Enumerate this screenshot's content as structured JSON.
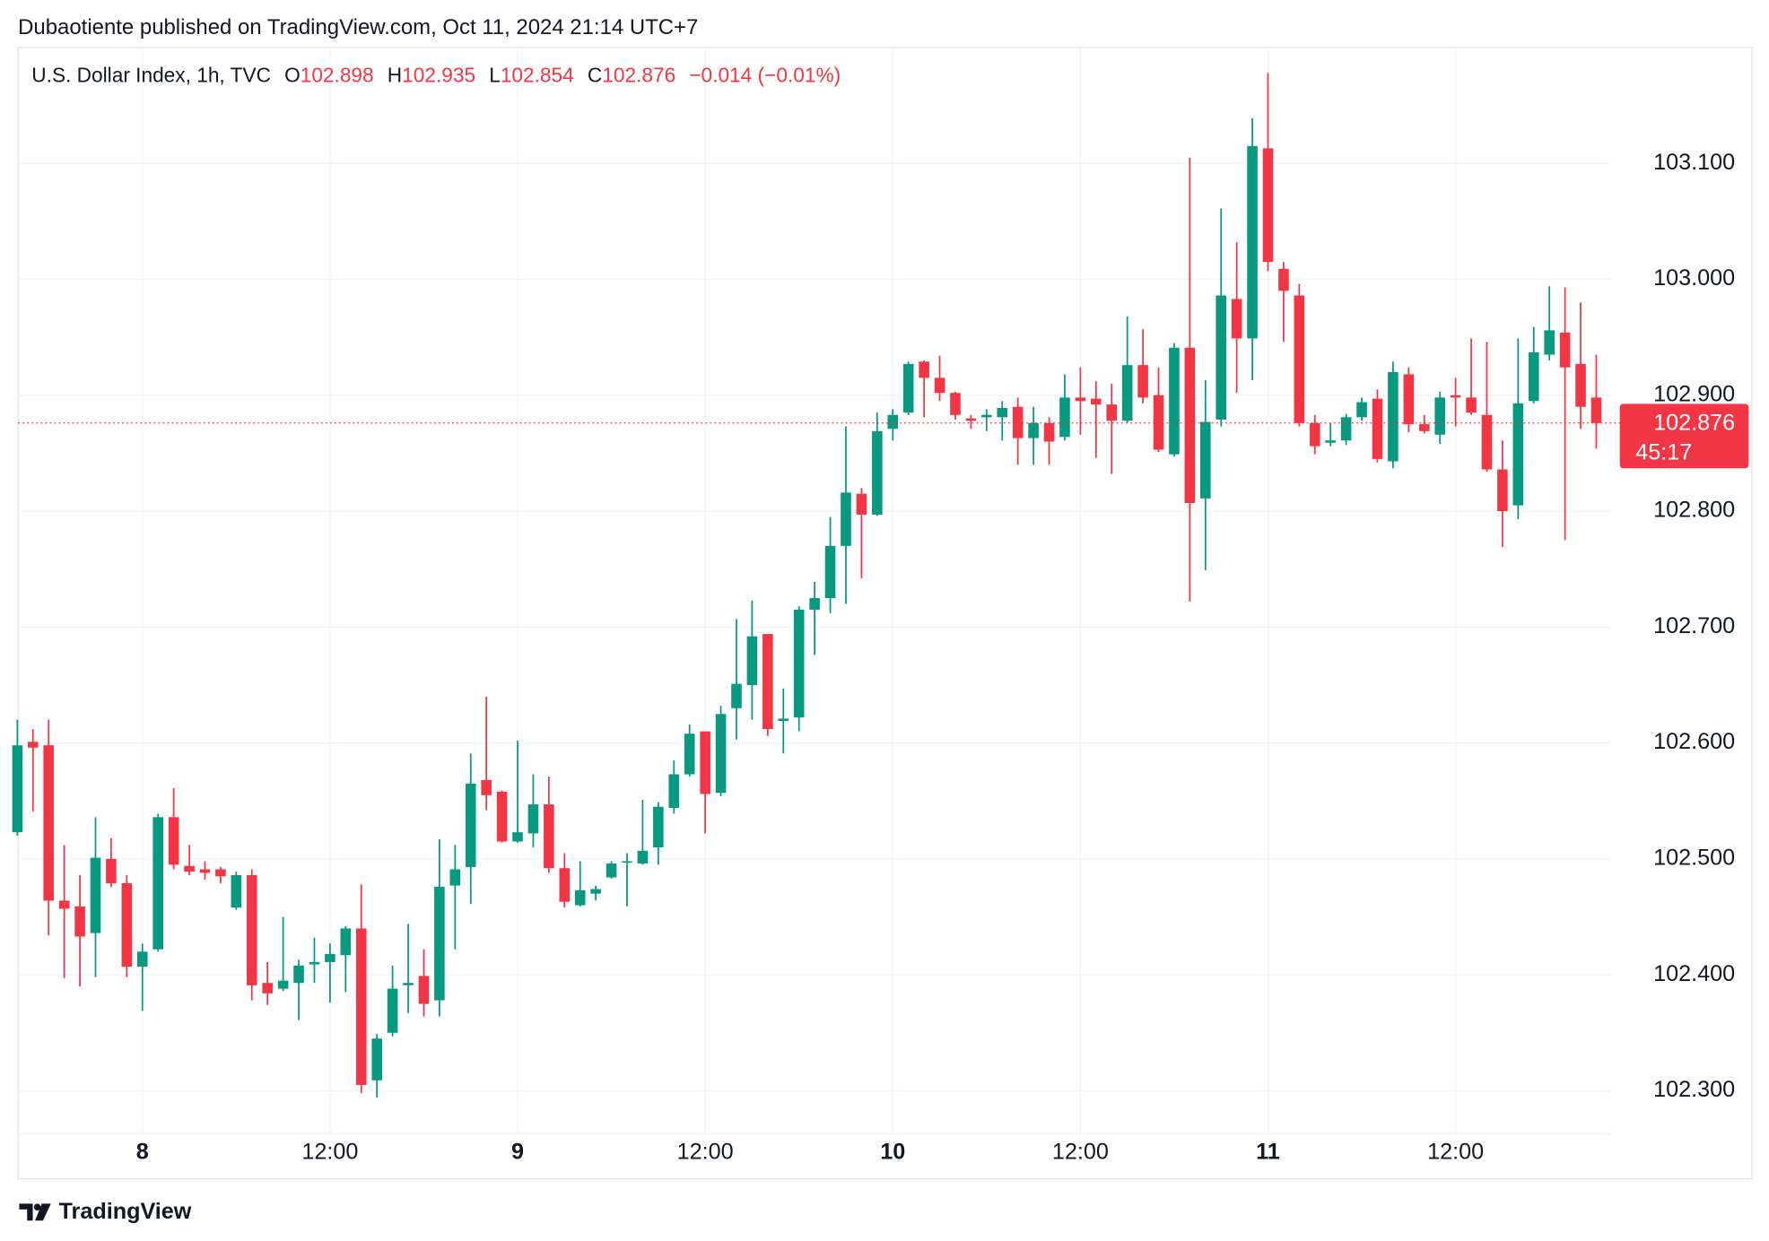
{
  "header": {
    "text": "Dubaotiente published on TradingView.com, Oct 11, 2024 21:14 UTC+7"
  },
  "footer": {
    "logo": "TradingView"
  },
  "chart_data": {
    "type": "candlestick",
    "title": "U.S. Dollar Index, 1h, TVC",
    "ohlc_legend": [
      {
        "label": "O",
        "value": "102.898"
      },
      {
        "label": "H",
        "value": "102.935"
      },
      {
        "label": "L",
        "value": "102.854"
      },
      {
        "label": "C",
        "value": "102.876"
      }
    ],
    "change": "−0.014 (−0.01%)",
    "categories": [
      null,
      null,
      null,
      null,
      null,
      null,
      null,
      null,
      "8",
      null,
      null,
      null,
      null,
      null,
      null,
      null,
      null,
      null,
      null,
      null,
      "12:00",
      null,
      null,
      null,
      null,
      null,
      null,
      null,
      null,
      null,
      null,
      null,
      "9",
      null,
      null,
      null,
      null,
      null,
      null,
      null,
      null,
      null,
      null,
      null,
      "12:00",
      null,
      null,
      null,
      null,
      null,
      null,
      null,
      null,
      null,
      null,
      null,
      "10",
      null,
      null,
      null,
      null,
      null,
      null,
      null,
      null,
      null,
      null,
      null,
      "12:00",
      null,
      null,
      null,
      null,
      null,
      null,
      null,
      null,
      null,
      null,
      null,
      "11",
      null,
      null,
      null,
      null,
      null,
      null,
      null,
      null,
      null,
      null,
      null,
      "12:00",
      null,
      null,
      null,
      null,
      null,
      null,
      null,
      null,
      null
    ],
    "open": [
      102.523,
      102.601,
      102.598,
      102.464,
      102.459,
      102.436,
      102.5,
      102.479,
      102.407,
      102.422,
      102.536,
      102.494,
      102.491,
      102.491,
      102.458,
      102.486,
      102.393,
      102.388,
      102.393,
      102.409,
      102.411,
      102.417,
      102.44,
      102.309,
      102.35,
      102.391,
      102.399,
      102.378,
      102.477,
      102.493,
      102.568,
      102.558,
      102.515,
      102.522,
      102.547,
      102.492,
      102.46,
      102.47,
      102.484,
      102.497,
      102.496,
      102.51,
      102.544,
      102.573,
      102.61,
      102.557,
      102.63,
      102.65,
      102.694,
      102.619,
      102.622,
      102.715,
      102.725,
      102.77,
      102.815,
      102.797,
      102.871,
      102.885,
      102.929,
      102.915,
      102.902,
      102.88,
      102.881,
      102.881,
      102.89,
      102.863,
      102.876,
      102.864,
      102.898,
      102.897,
      102.892,
      102.878,
      102.926,
      102.9,
      102.849,
      102.941,
      102.811,
      102.879,
      102.983,
      102.949,
      103.113,
      103.009,
      102.986,
      102.876,
      102.859,
      102.861,
      102.881,
      102.897,
      102.843,
      102.918,
      102.875,
      102.866,
      102.9,
      102.898,
      102.883,
      102.836,
      102.805,
      102.895,
      102.935,
      102.954,
      102.927,
      102.898
    ],
    "high": [
      102.62,
      102.612,
      102.62,
      102.512,
      102.486,
      102.536,
      102.518,
      102.486,
      102.427,
      102.539,
      102.561,
      102.512,
      102.498,
      102.493,
      102.489,
      102.491,
      102.411,
      102.45,
      102.413,
      102.432,
      102.427,
      102.442,
      102.478,
      102.349,
      102.408,
      102.444,
      102.422,
      102.517,
      102.512,
      102.591,
      102.64,
      102.559,
      102.602,
      102.573,
      102.571,
      102.505,
      102.498,
      102.477,
      102.498,
      102.505,
      102.551,
      102.549,
      102.585,
      102.616,
      102.61,
      102.632,
      102.707,
      102.723,
      102.694,
      102.647,
      102.718,
      102.739,
      102.795,
      102.873,
      102.82,
      102.885,
      102.888,
      102.929,
      102.93,
      102.934,
      102.903,
      102.883,
      102.888,
      102.895,
      102.898,
      102.89,
      102.881,
      102.918,
      102.924,
      102.912,
      102.91,
      102.968,
      102.957,
      102.924,
      102.945,
      103.105,
      102.913,
      103.061,
      103.032,
      103.139,
      103.178,
      103.015,
      102.996,
      102.883,
      102.876,
      102.884,
      102.898,
      102.905,
      102.929,
      102.924,
      102.883,
      102.903,
      102.915,
      102.949,
      102.946,
      102.861,
      102.949,
      102.959,
      102.994,
      102.993,
      102.98,
      102.935
    ],
    "low": [
      102.52,
      102.541,
      102.434,
      102.397,
      102.39,
      102.398,
      102.476,
      102.398,
      102.369,
      102.42,
      102.491,
      102.486,
      102.482,
      102.479,
      102.456,
      102.378,
      102.374,
      102.386,
      102.361,
      102.393,
      102.376,
      102.385,
      102.298,
      102.294,
      102.347,
      102.367,
      102.364,
      102.364,
      102.422,
      102.461,
      102.542,
      102.514,
      102.514,
      102.51,
      102.488,
      102.458,
      102.459,
      102.464,
      102.483,
      102.459,
      102.495,
      102.495,
      102.539,
      102.571,
      102.522,
      102.554,
      102.603,
      102.62,
      102.606,
      102.591,
      102.61,
      102.676,
      102.712,
      102.72,
      102.742,
      102.796,
      102.861,
      102.883,
      102.881,
      102.895,
      102.879,
      102.871,
      102.869,
      102.861,
      102.84,
      102.84,
      102.84,
      102.861,
      102.866,
      102.846,
      102.832,
      102.876,
      102.893,
      102.851,
      102.847,
      102.722,
      102.749,
      102.873,
      102.902,
      102.913,
      103.007,
      102.946,
      102.873,
      102.849,
      102.856,
      102.857,
      102.878,
      102.842,
      102.837,
      102.868,
      102.867,
      102.858,
      102.873,
      102.883,
      102.834,
      102.769,
      102.793,
      102.893,
      102.93,
      102.775,
      102.871,
      102.854
    ],
    "close": [
      102.598,
      102.596,
      102.464,
      102.457,
      102.433,
      102.501,
      102.479,
      102.407,
      102.42,
      102.536,
      102.495,
      102.489,
      102.488,
      102.485,
      102.486,
      102.391,
      102.384,
      102.395,
      102.408,
      102.411,
      102.418,
      102.44,
      102.305,
      102.345,
      102.388,
      102.393,
      102.375,
      102.476,
      102.491,
      102.565,
      102.555,
      102.515,
      102.523,
      102.547,
      102.492,
      102.463,
      102.473,
      102.474,
      102.496,
      102.498,
      102.507,
      102.545,
      102.573,
      102.608,
      102.556,
      102.625,
      102.651,
      102.692,
      102.612,
      102.621,
      102.715,
      102.725,
      102.77,
      102.816,
      102.797,
      102.869,
      102.883,
      102.927,
      102.915,
      102.902,
      102.883,
      102.878,
      102.883,
      102.889,
      102.863,
      102.876,
      102.86,
      102.898,
      102.895,
      102.892,
      102.878,
      102.926,
      102.898,
      102.853,
      102.941,
      102.807,
      102.877,
      102.986,
      102.949,
      103.115,
      103.015,
      102.99,
      102.876,
      102.856,
      102.861,
      102.881,
      102.894,
      102.845,
      102.92,
      102.875,
      102.869,
      102.898,
      102.898,
      102.885,
      102.836,
      102.8,
      102.893,
      102.937,
      102.956,
      102.924,
      102.89,
      102.876
    ],
    "up_color": "#089981",
    "down_color": "#f23645",
    "ylim": [
      102.263,
      103.2
    ],
    "yticks": [
      {
        "value": 102.3,
        "label": "102.300"
      },
      {
        "value": 102.4,
        "label": "102.400"
      },
      {
        "value": 102.5,
        "label": "102.500"
      },
      {
        "value": 102.6,
        "label": "102.600"
      },
      {
        "value": 102.7,
        "label": "102.700"
      },
      {
        "value": 102.8,
        "label": "102.800"
      },
      {
        "value": 102.9,
        "label": "102.900"
      },
      {
        "value": 103.0,
        "label": "103.000"
      },
      {
        "value": 103.1,
        "label": "103.100"
      }
    ],
    "last_price": 102.876,
    "countdown": "45:17",
    "grid": true
  }
}
